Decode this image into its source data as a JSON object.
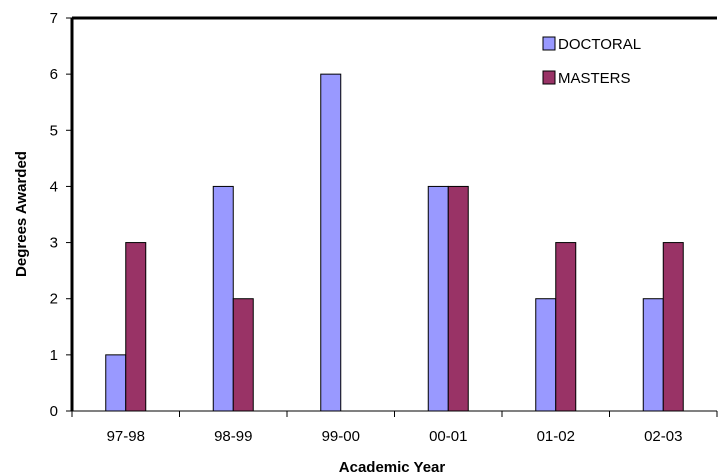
{
  "chart_data": {
    "type": "bar",
    "title": "",
    "xlabel": "Academic Year",
    "ylabel": "Degrees Awarded",
    "categories": [
      "97-98",
      "98-99",
      "99-00",
      "00-01",
      "01-02",
      "02-03"
    ],
    "series": [
      {
        "name": "DOCTORAL",
        "values": [
          1,
          4,
          6,
          4,
          2,
          2
        ],
        "color": "#9999ff"
      },
      {
        "name": "MASTERS",
        "values": [
          3,
          2,
          0,
          4,
          3,
          3
        ],
        "color": "#993366"
      }
    ],
    "ylim": [
      0,
      7
    ],
    "yticks": [
      0,
      1,
      2,
      3,
      4,
      5,
      6,
      7
    ],
    "grid": false,
    "legend_position": "top-right"
  }
}
